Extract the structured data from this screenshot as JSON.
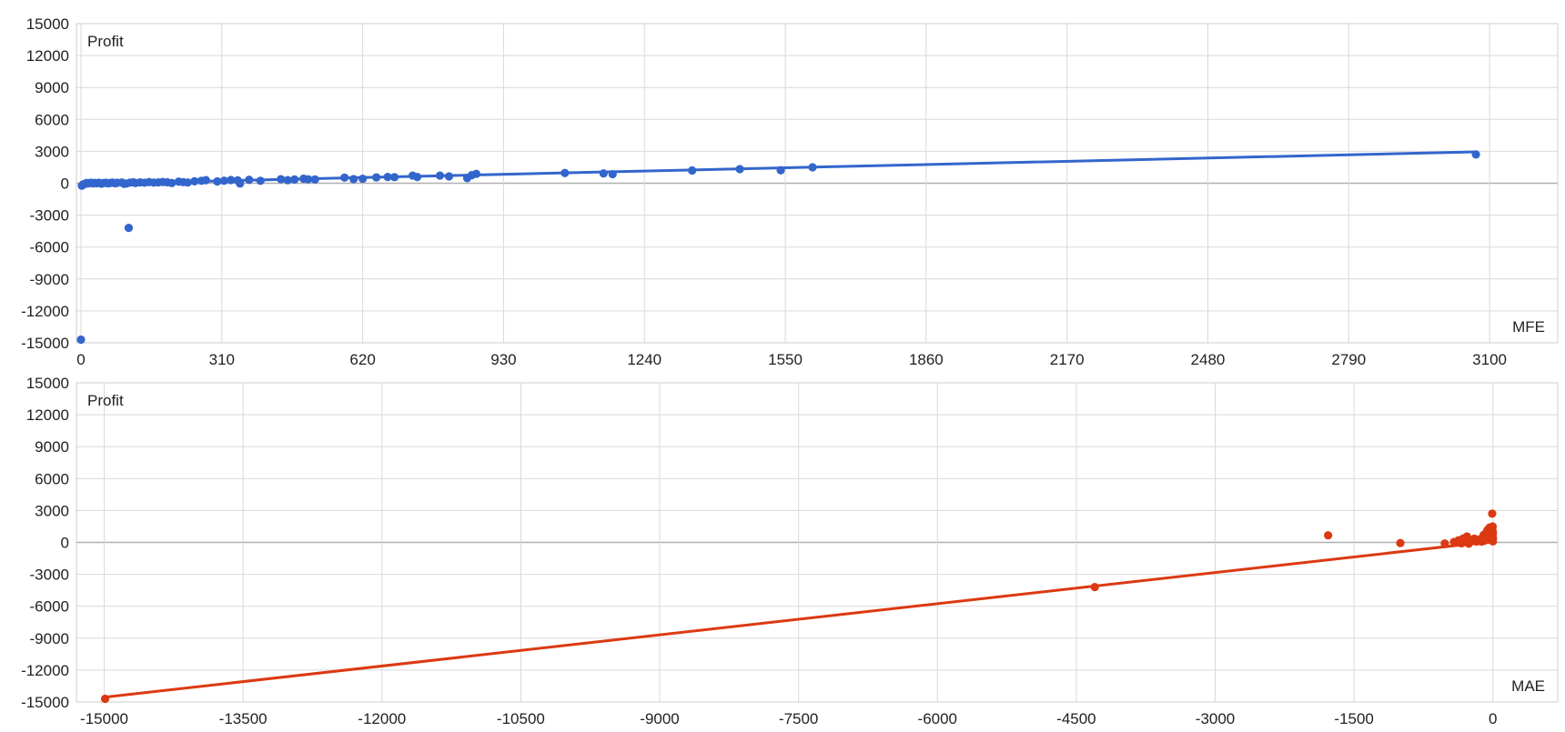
{
  "chart_data": [
    {
      "type": "scatter",
      "title": "",
      "xlabel": "MFE",
      "ylabel": "Profit",
      "xlim": [
        -10,
        3250
      ],
      "ylim": [
        -15000,
        15000
      ],
      "xticks": [
        "0",
        "310",
        "620",
        "930",
        "1240",
        "1550",
        "1860",
        "2170",
        "2480",
        "2790",
        "3100"
      ],
      "yticks": [
        "15000",
        "12000",
        "9000",
        "6000",
        "3000",
        "0",
        "-3000",
        "-6000",
        "-9000",
        "-12000",
        "-15000"
      ],
      "grid": true,
      "color": "#3366cc",
      "trendline": {
        "x1": 0,
        "y1": -80,
        "x2": 3070,
        "y2": 2950
      },
      "series": [
        {
          "points": [
            [
              0,
              -14700
            ],
            [
              2,
              -230
            ],
            [
              5,
              -100
            ],
            [
              8,
              -60
            ],
            [
              12,
              20
            ],
            [
              15,
              -30
            ],
            [
              18,
              10
            ],
            [
              22,
              40
            ],
            [
              26,
              -20
            ],
            [
              30,
              30
            ],
            [
              35,
              0
            ],
            [
              40,
              50
            ],
            [
              45,
              -40
            ],
            [
              50,
              20
            ],
            [
              55,
              40
            ],
            [
              60,
              -10
            ],
            [
              65,
              30
            ],
            [
              70,
              60
            ],
            [
              75,
              0
            ],
            [
              80,
              40
            ],
            [
              90,
              70
            ],
            [
              95,
              -60
            ],
            [
              100,
              -30
            ],
            [
              105,
              -4200
            ],
            [
              108,
              60
            ],
            [
              115,
              90
            ],
            [
              120,
              20
            ],
            [
              130,
              80
            ],
            [
              140,
              50
            ],
            [
              150,
              110
            ],
            [
              160,
              60
            ],
            [
              170,
              80
            ],
            [
              180,
              120
            ],
            [
              190,
              90
            ],
            [
              200,
              20
            ],
            [
              215,
              150
            ],
            [
              225,
              100
            ],
            [
              235,
              70
            ],
            [
              250,
              180
            ],
            [
              265,
              230
            ],
            [
              275,
              290
            ],
            [
              300,
              170
            ],
            [
              315,
              240
            ],
            [
              330,
              300
            ],
            [
              345,
              270
            ],
            [
              350,
              -30
            ],
            [
              370,
              320
            ],
            [
              395,
              230
            ],
            [
              440,
              380
            ],
            [
              455,
              290
            ],
            [
              470,
              350
            ],
            [
              490,
              430
            ],
            [
              500,
              370
            ],
            [
              515,
              350
            ],
            [
              580,
              530
            ],
            [
              600,
              390
            ],
            [
              620,
              420
            ],
            [
              650,
              550
            ],
            [
              675,
              590
            ],
            [
              690,
              570
            ],
            [
              730,
              720
            ],
            [
              740,
              590
            ],
            [
              790,
              720
            ],
            [
              810,
              640
            ],
            [
              850,
              480
            ],
            [
              860,
              760
            ],
            [
              870,
              880
            ],
            [
              1065,
              960
            ],
            [
              1150,
              920
            ],
            [
              1170,
              850
            ],
            [
              1345,
              1200
            ],
            [
              1450,
              1330
            ],
            [
              1540,
              1220
            ],
            [
              1610,
              1500
            ],
            [
              3070,
              2700
            ]
          ]
        }
      ]
    },
    {
      "type": "scatter",
      "title": "",
      "xlabel": "MAE",
      "ylabel": "Profit",
      "xlim": [
        -15300,
        700
      ],
      "ylim": [
        -15000,
        15000
      ],
      "xticks": [
        "-15000",
        "-13500",
        "-12000",
        "-10500",
        "-9000",
        "-7500",
        "-6000",
        "-4500",
        "-3000",
        "-1500",
        "0"
      ],
      "yticks": [
        "15000",
        "12000",
        "9000",
        "6000",
        "3000",
        "0",
        "-3000",
        "-6000",
        "-9000",
        "-12000",
        "-15000"
      ],
      "grid": true,
      "color": "#dc3912",
      "trendline": {
        "x1": -15000,
        "y1": -14550,
        "x2": 0,
        "y2": 100
      },
      "series": [
        {
          "points": [
            [
              -14990,
              -14700
            ],
            [
              -4300,
              -4200
            ],
            [
              -1780,
              660
            ],
            [
              -1000,
              -60
            ],
            [
              -520,
              -100
            ],
            [
              -420,
              40
            ],
            [
              -370,
              200
            ],
            [
              -340,
              -80
            ],
            [
              -320,
              370
            ],
            [
              -300,
              420
            ],
            [
              -280,
              560
            ],
            [
              -260,
              -120
            ],
            [
              -240,
              60
            ],
            [
              -220,
              240
            ],
            [
              -200,
              350
            ],
            [
              -180,
              90
            ],
            [
              -160,
              130
            ],
            [
              -140,
              300
            ],
            [
              -120,
              80
            ],
            [
              -100,
              700
            ],
            [
              -90,
              170
            ],
            [
              -80,
              420
            ],
            [
              -70,
              950
            ],
            [
              -60,
              1150
            ],
            [
              -50,
              600
            ],
            [
              -45,
              250
            ],
            [
              -40,
              1270
            ],
            [
              -35,
              1400
            ],
            [
              -30,
              870
            ],
            [
              -25,
              520
            ],
            [
              -20,
              1300
            ],
            [
              -18,
              380
            ],
            [
              -15,
              900
            ],
            [
              -12,
              1220
            ],
            [
              -10,
              700
            ],
            [
              -8,
              2700
            ],
            [
              -6,
              150
            ],
            [
              -5,
              1100
            ],
            [
              -4,
              500
            ],
            [
              -3,
              1500
            ],
            [
              -2,
              300
            ],
            [
              -1,
              800
            ],
            [
              -1,
              1000
            ],
            [
              0,
              100
            ],
            [
              0,
              420
            ]
          ]
        }
      ]
    }
  ]
}
